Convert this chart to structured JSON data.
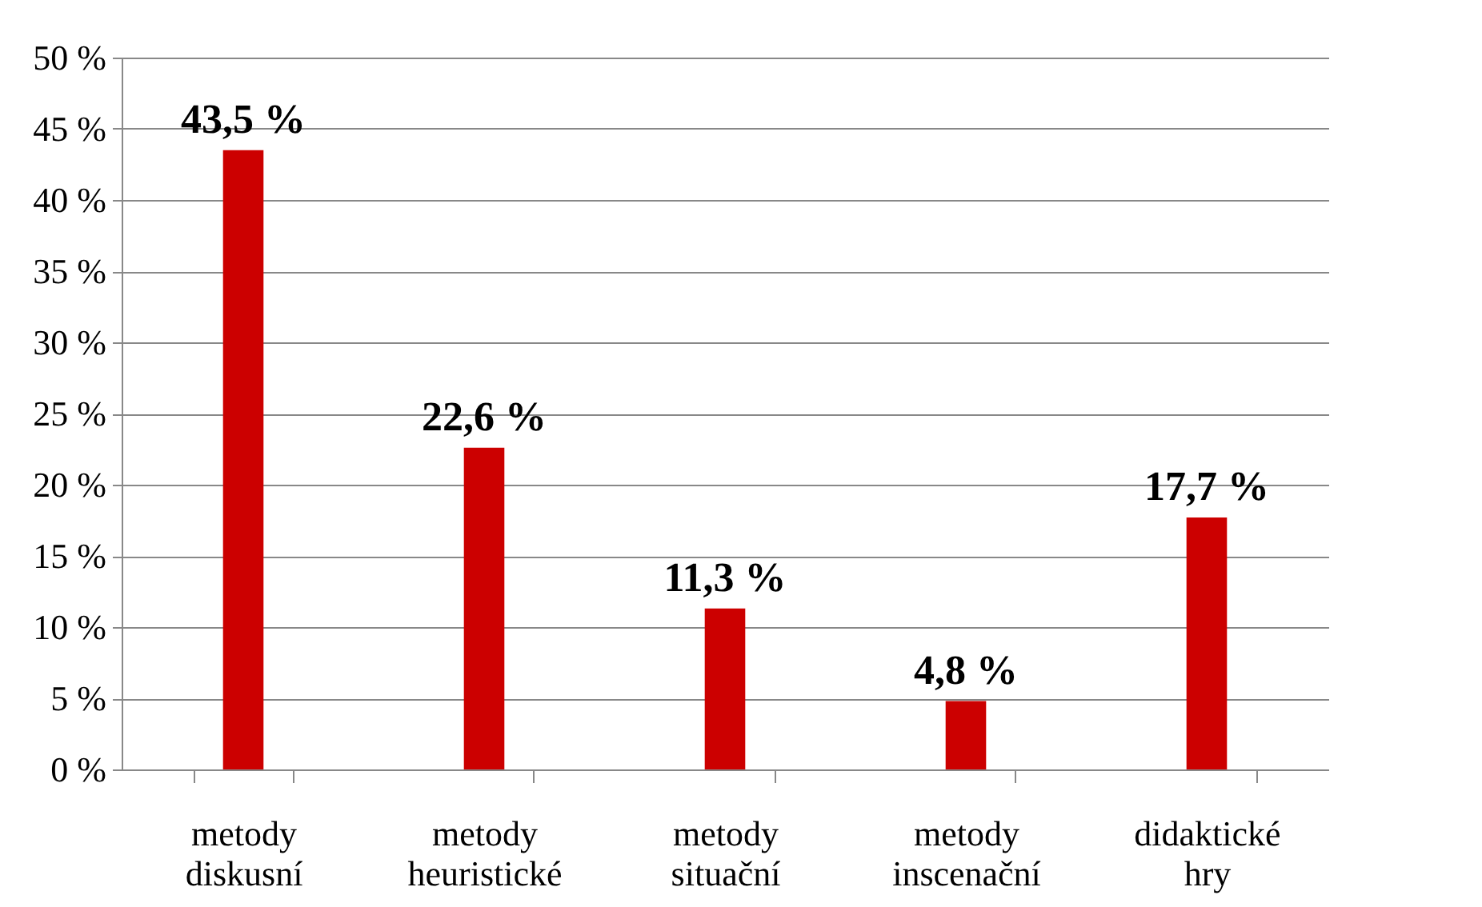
{
  "chart_data": {
    "type": "bar",
    "categories": [
      "metody diskusní",
      "metody heuristické",
      "metody situační",
      "metody inscenační",
      "didaktické hry"
    ],
    "values": [
      43.5,
      22.6,
      11.3,
      4.8,
      17.7
    ],
    "value_labels": [
      "43,5 %",
      "22,6 %",
      "11,3 %",
      "4,8 %",
      "17,7 %"
    ],
    "color": "#cc0000",
    "ylim": [
      0,
      50
    ],
    "yticks": [
      {
        "value": 0,
        "label": "0 %"
      },
      {
        "value": 5,
        "label": "5 %"
      },
      {
        "value": 10,
        "label": "10 %"
      },
      {
        "value": 15,
        "label": "15 %"
      },
      {
        "value": 20,
        "label": "20 %"
      },
      {
        "value": 25,
        "label": "25 %"
      },
      {
        "value": 30,
        "label": "30 %"
      },
      {
        "value": 35,
        "label": "35 %"
      },
      {
        "value": 40,
        "label": "40 %"
      },
      {
        "value": 45,
        "label": "45 %"
      },
      {
        "value": 50,
        "label": "50 %"
      }
    ],
    "grid": "y"
  }
}
